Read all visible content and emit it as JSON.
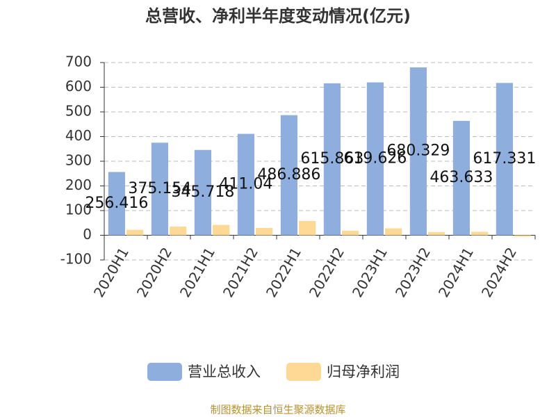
{
  "chart_data": {
    "type": "bar",
    "title": "总营收、净利半年度变动情况(亿元)",
    "categories": [
      "2020H1",
      "2020H2",
      "2021H1",
      "2021H2",
      "2022H1",
      "2022H2",
      "2023H1",
      "2023H2",
      "2024H1",
      "2024H2"
    ],
    "series": [
      {
        "name": "营业总收入",
        "color": "#8eaede",
        "values": [
          256.416,
          375.154,
          345.718,
          411.04,
          486.886,
          615.863,
          619.626,
          680.329,
          463.633,
          617.331
        ],
        "show_labels": true
      },
      {
        "name": "归母净利润",
        "color": "#fdd995",
        "values": [
          22,
          35,
          42,
          30,
          58,
          18,
          28,
          13,
          14,
          -5
        ],
        "show_labels": false
      }
    ],
    "ylim": [
      -100,
      700
    ],
    "yticks": [
      -100,
      0,
      100,
      200,
      300,
      400,
      500,
      600,
      700
    ],
    "grid": true,
    "source": "制图数据来自恒生聚源数据库"
  }
}
